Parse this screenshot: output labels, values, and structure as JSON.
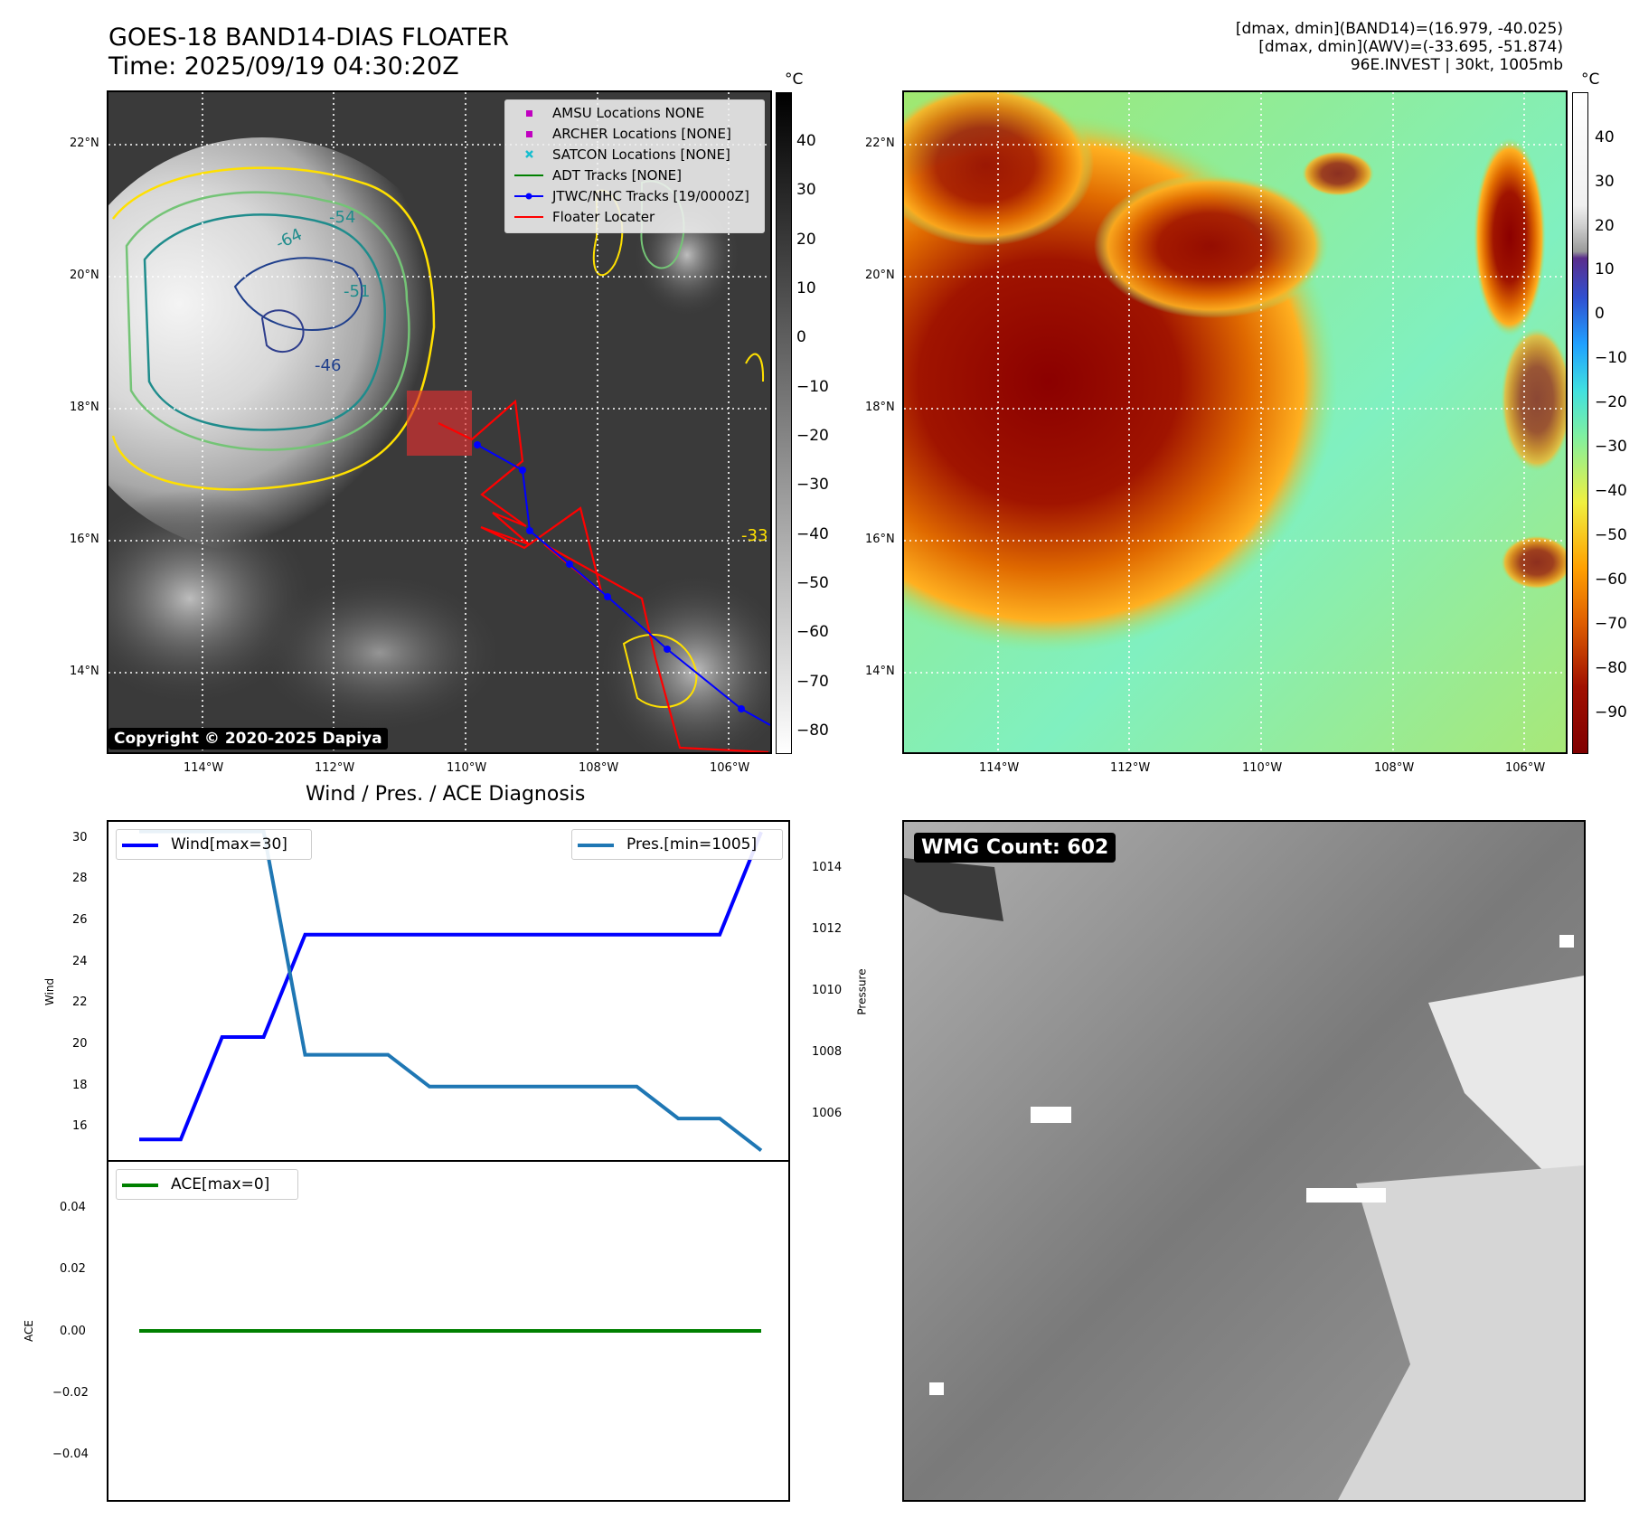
{
  "header": {
    "title_line1": "GOES-18 BAND14-DIAS FLOATER",
    "title_line2": "Time: 2025/09/19 04:30:20Z",
    "info_line1": "[dmax, dmin](BAND14)=(16.979, -40.025)",
    "info_line2": "[dmax, dmin](AWV)=(-33.695, -51.874)",
    "info_line3": "96E.INVEST | 30kt, 1005mb"
  },
  "colorbar": {
    "unit": "°C",
    "left_ticks": [
      "40",
      "30",
      "20",
      "10",
      "0",
      "−10",
      "−20",
      "−30",
      "−40",
      "−50",
      "−60",
      "−70",
      "−80"
    ],
    "right_ticks": [
      "40",
      "30",
      "20",
      "10",
      "0",
      "−10",
      "−20",
      "−30",
      "−40",
      "−50",
      "−60",
      "−70",
      "−80",
      "−90"
    ]
  },
  "map": {
    "lon_ticks": [
      "114°W",
      "112°W",
      "110°W",
      "108°W",
      "106°W"
    ],
    "lat_ticks": [
      "22°N",
      "20°N",
      "18°N",
      "16°N",
      "14°N"
    ],
    "contour_labels": [
      "-64",
      "-54",
      "-51",
      "-46",
      "-33"
    ],
    "copyright": "Copyright © 2020-2025 Dapiya"
  },
  "legend": {
    "items": [
      {
        "label": "AMSU Locations NONE",
        "color": "#c000c0",
        "symbol": "square"
      },
      {
        "label": "ARCHER Locations [NONE]",
        "color": "#c000c0",
        "symbol": "square"
      },
      {
        "label": "SATCON Locations [NONE]",
        "color": "#17becf",
        "symbol": "x"
      },
      {
        "label": "ADT Tracks [NONE]",
        "color": "#008000",
        "symbol": "line"
      },
      {
        "label": "JTWC/NHC Tracks [19/0000Z]",
        "color": "#0000ff",
        "symbol": "line-dot"
      },
      {
        "label": "Floater Locater",
        "color": "#ff0000",
        "symbol": "line"
      }
    ]
  },
  "diagnosis": {
    "title": "Wind / Pres. / ACE Diagnosis",
    "wind_legend": "Wind[max=30]",
    "pres_legend": "Pres.[min=1005]",
    "ace_legend": "ACE[max=0]",
    "wind_axis_label": "Wind",
    "pres_axis_label": "Pressure",
    "ace_axis_label": "ACE",
    "wind_ticks": [
      "30",
      "28",
      "26",
      "24",
      "22",
      "20",
      "18",
      "16"
    ],
    "pres_ticks": [
      "1014",
      "1012",
      "1010",
      "1008",
      "1006"
    ],
    "ace_ticks": [
      "0.04",
      "0.02",
      "0.00",
      "−0.02",
      "−0.04"
    ]
  },
  "wmg": {
    "label": "WMG Count: 602"
  },
  "chart_data": [
    {
      "type": "line",
      "title": "Wind / Pres. / ACE Diagnosis",
      "x": [
        0,
        1,
        2,
        3,
        4,
        5,
        6,
        7,
        8,
        9,
        10,
        11,
        12,
        13,
        14,
        15
      ],
      "series": [
        {
          "name": "Wind[max=30]",
          "color": "#0000ff",
          "axis": "left",
          "values": [
            15,
            15,
            20,
            20,
            25,
            25,
            25,
            25,
            25,
            25,
            25,
            25,
            25,
            25,
            25,
            30
          ]
        },
        {
          "name": "Pres.[min=1005]",
          "color": "#1f77b4",
          "axis": "right",
          "values": [
            1015,
            1015,
            1015,
            1015,
            1008,
            1008,
            1008,
            1007,
            1007,
            1007,
            1007,
            1007,
            1007,
            1006,
            1006,
            1005
          ]
        }
      ],
      "ylabel": "Wind",
      "ylabel_right": "Pressure",
      "ylim": [
        14,
        30.5
      ],
      "ylim_right": [
        1004.7,
        1015.3
      ]
    },
    {
      "type": "line",
      "x": [
        0,
        1,
        2,
        3,
        4,
        5,
        6,
        7,
        8,
        9,
        10,
        11,
        12,
        13,
        14,
        15
      ],
      "series": [
        {
          "name": "ACE[max=0]",
          "color": "#008000",
          "values": [
            0,
            0,
            0,
            0,
            0,
            0,
            0,
            0,
            0,
            0,
            0,
            0,
            0,
            0,
            0,
            0
          ]
        }
      ],
      "ylabel": "ACE",
      "ylim": [
        -0.055,
        0.055
      ]
    }
  ]
}
